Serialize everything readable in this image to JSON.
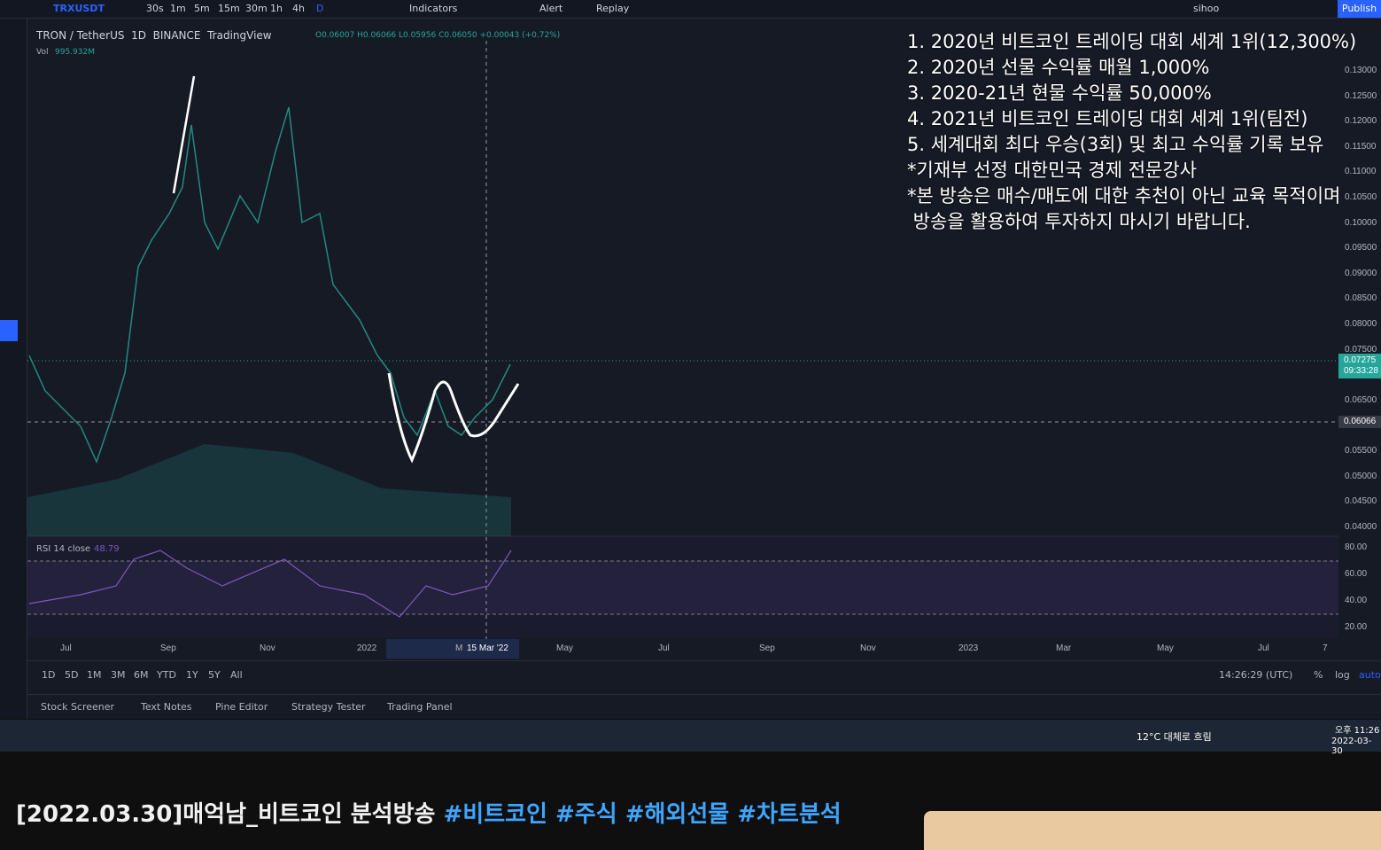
{
  "toolbar": {
    "symbol": "TRXUSDT",
    "intervals": [
      "30s",
      "1m",
      "5m",
      "15m",
      "30m",
      "1h",
      "4h",
      "D"
    ],
    "indicators": "Indicators",
    "alert": "Alert",
    "replay": "Replay",
    "user": "sihoo",
    "publish": "Publish"
  },
  "legend": {
    "title": "TRON / TetherUS  1D  BINANCE  TradingView",
    "ohlc": "O0.06007 H0.06066 L0.05956 C0.06050 +0.00043 (+0.72%)",
    "vol": "Vol",
    "vol_value": "995.932M",
    "rsi": "RSI 14 close",
    "rsi_value": "48.79"
  },
  "price_axis": [
    "0.13000",
    "0.12500",
    "0.12000",
    "0.11500",
    "0.11000",
    "0.10500",
    "0.10000",
    "0.09500",
    "0.09000",
    "0.08500",
    "0.08000",
    "0.07500",
    "0.06500",
    "0.05500",
    "0.05000",
    "0.04500",
    "0.04000"
  ],
  "current_price": "0.07275",
  "countdown": "09:33:28",
  "crosshair_price": "0.06066",
  "rsi_axis": [
    "80.00",
    "60.00",
    "40.00",
    "20.00"
  ],
  "time_axis": [
    "Jul",
    "Sep",
    "Nov",
    "2022",
    "M",
    "15 Mar '22",
    "May",
    "Jul",
    "Sep",
    "Nov",
    "2023",
    "Mar",
    "May",
    "Jul",
    "7"
  ],
  "ranges": [
    "1D",
    "5D",
    "1M",
    "3M",
    "6M",
    "YTD",
    "1Y",
    "5Y",
    "All"
  ],
  "clock": "14:26:29 (UTC)",
  "scale_opts": [
    "%",
    "log",
    "auto"
  ],
  "panel_tabs": [
    "Stock Screener",
    "Text Notes",
    "Pine Editor",
    "Strategy Tester",
    "Trading Panel"
  ],
  "overlay_lines": [
    "1. 2020년 비트코인 트레이딩 대회 세계 1위(12,300%)",
    "2. 2020년 선물 수익률 매월 1,000%",
    "3. 2020-21년 현물 수익률 50,000%",
    "4. 2021년 비트코인 트레이딩 대회 세계 1위(팀전)",
    "5. 세계대회 최다 우승(3회) 및 최고 수익률 기록 보유",
    "*기재부 선정 대한민국 경제 전문강사",
    "*본 방송은 매수/매도에 대한 추천이 아닌 교육 목적이며",
    " 방송을 활용하여 투자하지 마시기 바랍니다."
  ],
  "taskbar": {
    "weather": "12°C 대체로 흐림",
    "time": "오후 11:26",
    "date": "2022-03-30"
  },
  "video": {
    "title": "[2022.03.30]매억남_비트코인 분석방송",
    "hashtags": [
      "#비트코인",
      "#주식",
      "#해외선물",
      "#차트분석"
    ]
  }
}
